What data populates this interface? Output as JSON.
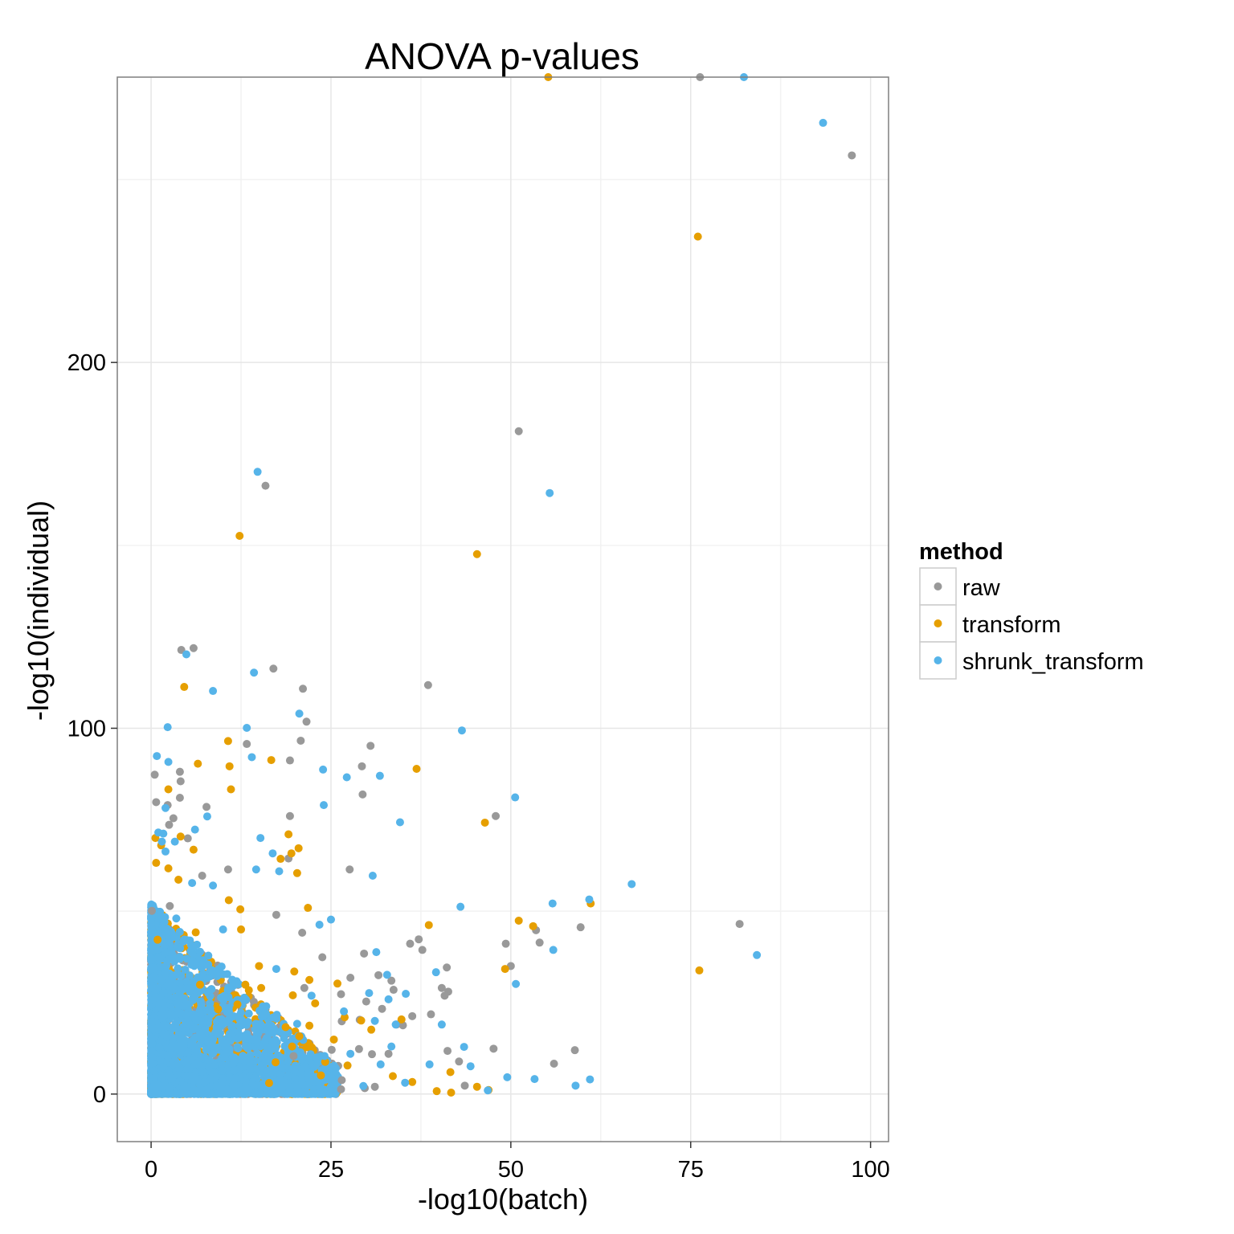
{
  "chart_data": {
    "type": "scatter",
    "title": "ANOVA p-values",
    "xlabel": "-log10(batch)",
    "ylabel": "-log10(individual)",
    "xlim": [
      -4.7,
      102.5
    ],
    "ylim": [
      -13.0,
      278.0
    ],
    "x_ticks": [
      0,
      25,
      50,
      75,
      100
    ],
    "x_tick_labels": [
      "0",
      "25",
      "50",
      "75",
      "100"
    ],
    "y_ticks": [
      0,
      100,
      200
    ],
    "y_tick_labels": [
      "0",
      "100",
      "200"
    ],
    "grid": true,
    "legend": {
      "title": "method",
      "position": "right"
    },
    "colors": {
      "raw": "#999999",
      "transform": "#E69F00",
      "shrunk_transform": "#56B4E9"
    },
    "series": [
      {
        "name": "raw",
        "color": "#999999",
        "points": [
          [
            76.3,
            278.0
          ],
          [
            97.4,
            256.6
          ],
          [
            51.1,
            181.2
          ],
          [
            15.9,
            166.3
          ],
          [
            5.9,
            121.9
          ],
          [
            4.2,
            121.4
          ],
          [
            17.0,
            116.3
          ],
          [
            21.1,
            110.8
          ],
          [
            38.5,
            111.8
          ],
          [
            21.6,
            101.8
          ],
          [
            20.8,
            96.6
          ],
          [
            13.3,
            95.7
          ],
          [
            30.5,
            95.2
          ],
          [
            29.3,
            89.6
          ],
          [
            19.3,
            91.2
          ],
          [
            4.0,
            88.1
          ],
          [
            4.1,
            85.5
          ],
          [
            0.5,
            87.3
          ],
          [
            29.4,
            81.9
          ],
          [
            4.0,
            81.0
          ],
          [
            2.3,
            79.0
          ],
          [
            0.7,
            79.8
          ],
          [
            7.7,
            78.5
          ],
          [
            19.3,
            76.0
          ],
          [
            47.9,
            76.0
          ],
          [
            3.1,
            75.4
          ],
          [
            2.5,
            73.6
          ],
          [
            5.1,
            69.9
          ],
          [
            19.1,
            64.4
          ],
          [
            27.6,
            61.4
          ],
          [
            10.7,
            61.4
          ],
          [
            7.1,
            59.7
          ],
          [
            2.6,
            51.4
          ],
          [
            0.1,
            50.1
          ],
          [
            17.4,
            49.0
          ],
          [
            81.8,
            46.5
          ],
          [
            59.7,
            45.6
          ],
          [
            53.5,
            44.8
          ],
          [
            21.0,
            44.1
          ],
          [
            23.8,
            37.4
          ],
          [
            54.0,
            41.4
          ],
          [
            49.3,
            41.1
          ],
          [
            37.2,
            42.3
          ],
          [
            41.1,
            34.6
          ],
          [
            36.0,
            41.1
          ],
          [
            29.6,
            38.4
          ],
          [
            50.0,
            35.0
          ],
          [
            33.4,
            31.0
          ],
          [
            27.7,
            31.8
          ],
          [
            40.4,
            29.0
          ],
          [
            33.7,
            28.5
          ],
          [
            41.3,
            28.0
          ],
          [
            21.3,
            29.0
          ],
          [
            26.4,
            27.3
          ],
          [
            29.9,
            25.3
          ],
          [
            32.1,
            23.3
          ],
          [
            38.9,
            21.8
          ],
          [
            40.8,
            26.9
          ],
          [
            26.5,
            19.9
          ],
          [
            34.1,
            19.0
          ],
          [
            36.3,
            21.3
          ],
          [
            29.0,
            20.3
          ],
          [
            47.6,
            12.4
          ],
          [
            58.9,
            12.0
          ],
          [
            41.2,
            11.8
          ],
          [
            33.0,
            11.0
          ],
          [
            25.1,
            12.1
          ],
          [
            28.9,
            12.3
          ],
          [
            30.7,
            10.9
          ],
          [
            42.8,
            8.9
          ],
          [
            56.0,
            8.3
          ],
          [
            43.6,
            2.3
          ],
          [
            29.7,
            1.6
          ],
          [
            26.4,
            1.3
          ],
          [
            31.1,
            2.0
          ],
          [
            26.5,
            3.8
          ],
          [
            19.8,
            10.4
          ],
          [
            35.0,
            18.8
          ],
          [
            31.6,
            32.5
          ],
          [
            37.7,
            39.4
          ]
        ]
      },
      {
        "name": "transform",
        "color": "#E69F00",
        "points": [
          [
            55.2,
            278.0
          ],
          [
            76.0,
            234.4
          ],
          [
            12.3,
            152.6
          ],
          [
            45.3,
            147.6
          ],
          [
            4.6,
            111.3
          ],
          [
            10.7,
            96.5
          ],
          [
            16.7,
            91.3
          ],
          [
            6.5,
            90.3
          ],
          [
            10.9,
            89.6
          ],
          [
            36.9,
            88.9
          ],
          [
            11.1,
            83.3
          ],
          [
            2.4,
            83.3
          ],
          [
            4.1,
            70.4
          ],
          [
            5.9,
            66.8
          ],
          [
            46.4,
            74.2
          ],
          [
            19.1,
            71.0
          ],
          [
            0.6,
            70.0
          ],
          [
            1.4,
            68.0
          ],
          [
            20.5,
            67.2
          ],
          [
            19.5,
            65.8
          ],
          [
            18.0,
            64.3
          ],
          [
            2.4,
            61.7
          ],
          [
            0.7,
            63.2
          ],
          [
            20.3,
            60.4
          ],
          [
            3.8,
            58.6
          ],
          [
            10.8,
            53.0
          ],
          [
            12.4,
            50.5
          ],
          [
            21.8,
            50.9
          ],
          [
            38.6,
            46.2
          ],
          [
            51.1,
            47.4
          ],
          [
            61.1,
            52.1
          ],
          [
            53.1,
            45.9
          ],
          [
            0.9,
            42.2
          ],
          [
            6.2,
            44.2
          ],
          [
            12.5,
            45.0
          ],
          [
            76.2,
            33.8
          ],
          [
            49.2,
            34.2
          ],
          [
            19.9,
            33.5
          ],
          [
            15.0,
            35.0
          ],
          [
            22.0,
            31.2
          ],
          [
            19.7,
            27.0
          ],
          [
            15.3,
            29.0
          ],
          [
            25.9,
            30.2
          ],
          [
            22.8,
            24.8
          ],
          [
            12.0,
            24.5
          ],
          [
            13.1,
            29.9
          ],
          [
            26.9,
            21.0
          ],
          [
            18.7,
            18.3
          ],
          [
            22.0,
            18.7
          ],
          [
            20.6,
            15.8
          ],
          [
            25.4,
            14.9
          ],
          [
            22.1,
            13.2
          ],
          [
            29.2,
            20.1
          ],
          [
            30.6,
            17.6
          ],
          [
            34.8,
            20.4
          ],
          [
            39.7,
            0.8
          ],
          [
            41.7,
            0.4
          ],
          [
            46.9,
            1.1
          ],
          [
            45.3,
            2.0
          ],
          [
            36.3,
            3.3
          ],
          [
            41.6,
            6.0
          ],
          [
            27.3,
            7.8
          ],
          [
            24.2,
            8.8
          ],
          [
            33.6,
            4.9
          ],
          [
            19.6,
            13.0
          ],
          [
            17.3,
            8.7
          ],
          [
            16.4,
            3.0
          ],
          [
            23.6,
            5.1
          ],
          [
            9.3,
            23.2
          ],
          [
            6.8,
            29.9
          ]
        ]
      },
      {
        "name": "shrunk_transform",
        "color": "#56B4E9",
        "points": [
          [
            82.4,
            278.0
          ],
          [
            93.4,
            265.5
          ],
          [
            14.8,
            170.1
          ],
          [
            55.4,
            164.3
          ],
          [
            4.9,
            120.2
          ],
          [
            14.3,
            115.2
          ],
          [
            8.6,
            110.2
          ],
          [
            20.6,
            104.0
          ],
          [
            2.3,
            100.3
          ],
          [
            13.3,
            100.1
          ],
          [
            43.2,
            99.4
          ],
          [
            14.0,
            92.1
          ],
          [
            0.8,
            92.4
          ],
          [
            2.4,
            90.8
          ],
          [
            23.9,
            88.7
          ],
          [
            27.2,
            86.6
          ],
          [
            31.8,
            87.0
          ],
          [
            50.6,
            81.1
          ],
          [
            2.0,
            78.2
          ],
          [
            7.8,
            75.9
          ],
          [
            24.0,
            79.0
          ],
          [
            34.6,
            74.3
          ],
          [
            6.1,
            72.3
          ],
          [
            1.0,
            71.5
          ],
          [
            1.7,
            71.2
          ],
          [
            1.5,
            69.0
          ],
          [
            3.3,
            69.0
          ],
          [
            2.0,
            66.3
          ],
          [
            15.2,
            70.0
          ],
          [
            16.9,
            65.8
          ],
          [
            14.6,
            61.4
          ],
          [
            17.8,
            60.9
          ],
          [
            30.8,
            59.7
          ],
          [
            5.7,
            57.7
          ],
          [
            8.6,
            57.0
          ],
          [
            66.8,
            57.4
          ],
          [
            60.9,
            53.2
          ],
          [
            55.8,
            52.1
          ],
          [
            43.0,
            51.2
          ],
          [
            25.0,
            47.7
          ],
          [
            23.4,
            46.3
          ],
          [
            55.9,
            39.4
          ],
          [
            84.2,
            38.0
          ],
          [
            31.3,
            38.8
          ],
          [
            50.7,
            30.1
          ],
          [
            32.8,
            32.6
          ],
          [
            39.6,
            33.3
          ],
          [
            17.4,
            34.2
          ],
          [
            22.3,
            26.9
          ],
          [
            30.3,
            27.6
          ],
          [
            35.4,
            27.4
          ],
          [
            33.0,
            25.9
          ],
          [
            26.8,
            22.6
          ],
          [
            31.1,
            20.0
          ],
          [
            34.0,
            19.0
          ],
          [
            40.4,
            19.0
          ],
          [
            20.3,
            19.2
          ],
          [
            43.5,
            12.9
          ],
          [
            38.7,
            8.1
          ],
          [
            44.4,
            7.6
          ],
          [
            61.0,
            4.0
          ],
          [
            49.5,
            4.6
          ],
          [
            53.3,
            4.1
          ],
          [
            59.0,
            2.3
          ],
          [
            46.8,
            1.0
          ],
          [
            35.3,
            3.1
          ],
          [
            31.9,
            8.1
          ],
          [
            27.7,
            11.0
          ],
          [
            33.4,
            13.0
          ],
          [
            24.1,
            10.4
          ],
          [
            29.5,
            2.2
          ],
          [
            25.2,
            4.2
          ],
          [
            18.2,
            1.7
          ],
          [
            12.2,
            15.4
          ],
          [
            9.9,
            14.1
          ],
          [
            0.5,
            3.0
          ],
          [
            3.0,
            8.0
          ],
          [
            6.0,
            18.0
          ],
          [
            1.2,
            25.0
          ],
          [
            4.0,
            40.0
          ],
          [
            8.5,
            11.0
          ],
          [
            11.6,
            6.5
          ],
          [
            2.5,
            31.0
          ],
          [
            5.4,
            5.0
          ],
          [
            15.7,
            4.8
          ],
          [
            20.1,
            2.5
          ],
          [
            7.0,
            22.0
          ],
          [
            3.5,
            48.0
          ],
          [
            10.0,
            45.0
          ],
          [
            16.0,
            24.0
          ]
        ]
      }
    ],
    "dense_region": {
      "note": "thousands of overlapping points near the origin",
      "x_range": [
        0,
        25
      ],
      "y_range": [
        0,
        50
      ]
    }
  }
}
